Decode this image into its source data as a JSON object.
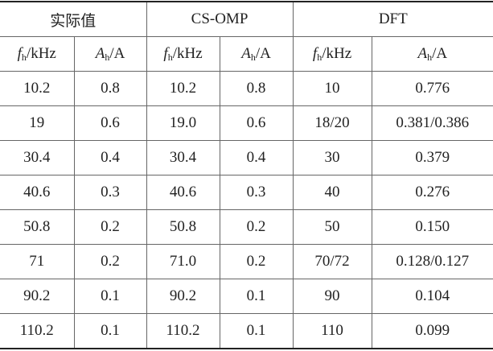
{
  "table": {
    "groups": [
      "实际值",
      "CS-OMP",
      "DFT"
    ],
    "subheaders": [
      {
        "symbol": "f",
        "sub": "h",
        "unit": "/kHz"
      },
      {
        "symbol": "A",
        "sub": "h",
        "unit": "/A"
      },
      {
        "symbol": "f",
        "sub": "h",
        "unit": "/kHz"
      },
      {
        "symbol": "A",
        "sub": "h",
        "unit": "/A"
      },
      {
        "symbol": "f",
        "sub": "h",
        "unit": "/kHz"
      },
      {
        "symbol": "A",
        "sub": "h",
        "unit": "/A"
      }
    ],
    "rows": [
      [
        "10.2",
        "0.8",
        "10.2",
        "0.8",
        "10",
        "0.776"
      ],
      [
        "19",
        "0.6",
        "19.0",
        "0.6",
        "18/20",
        "0.381/0.386"
      ],
      [
        "30.4",
        "0.4",
        "30.4",
        "0.4",
        "30",
        "0.379"
      ],
      [
        "40.6",
        "0.3",
        "40.6",
        "0.3",
        "40",
        "0.276"
      ],
      [
        "50.8",
        "0.2",
        "50.8",
        "0.2",
        "50",
        "0.150"
      ],
      [
        "71",
        "0.2",
        "71.0",
        "0.2",
        "70/72",
        "0.128/0.127"
      ],
      [
        "90.2",
        "0.1",
        "90.2",
        "0.1",
        "90",
        "0.104"
      ],
      [
        "110.2",
        "0.1",
        "110.2",
        "0.1",
        "110",
        "0.099"
      ]
    ]
  }
}
